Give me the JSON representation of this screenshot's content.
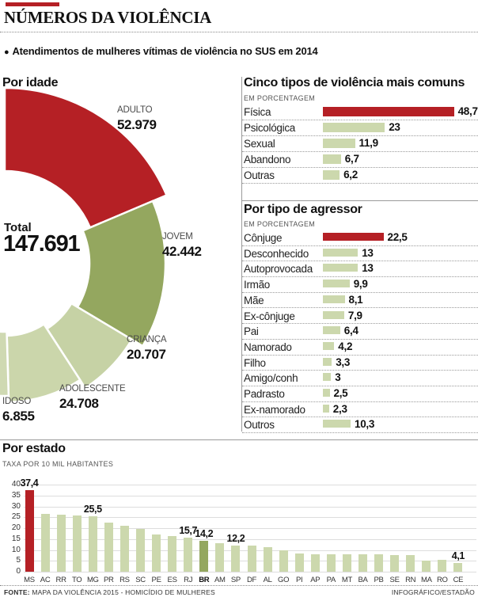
{
  "header": {
    "title": "NÚMEROS DA VIOLÊNCIA",
    "bullet": "●",
    "subtitle": "Atendimentos de mulheres vítimas de violência no SUS em 2014"
  },
  "colors": {
    "red": "#b52025",
    "olive": "#94a75f",
    "light_green": "#ccd8ad",
    "grid": "#dddddd",
    "rule": "#9a9a9a"
  },
  "chart_data": [
    {
      "name": "by_age",
      "type": "donut",
      "title": "Por idade",
      "total_label": "Total",
      "total": 147691,
      "total_display": "147.691",
      "segments": [
        {
          "label": "ADULTO",
          "value": 52979,
          "display": "52.979",
          "color": "#b52025"
        },
        {
          "label": "JOVEM",
          "value": 42442,
          "display": "42.442",
          "color": "#94a75f"
        },
        {
          "label": "CRIANÇA",
          "value": 20707,
          "display": "20.707",
          "color": "#c6d2a5"
        },
        {
          "label": "ADOLESCENTE",
          "value": 24708,
          "display": "24.708",
          "color": "#cbd6ab"
        },
        {
          "label": "IDOSO",
          "value": 6855,
          "display": "6.855",
          "color": "#cfd9b2"
        }
      ]
    },
    {
      "name": "violence_types",
      "type": "bar",
      "title": "Cinco tipos de violência mais comuns",
      "subtitle": "EM PORCENTAGEM",
      "categories": [
        "Física",
        "Psicológica",
        "Sexual",
        "Abandono",
        "Outras"
      ],
      "values": [
        48.7,
        23,
        11.9,
        6.7,
        6.2
      ],
      "displays": [
        "48,7",
        "23",
        "11,9",
        "6,7",
        "6,2"
      ],
      "highlight_index": 0,
      "xlim": [
        0,
        50
      ]
    },
    {
      "name": "aggressor_types",
      "type": "bar",
      "title": "Por tipo de agressor",
      "subtitle": "EM PORCENTAGEM",
      "categories": [
        "Cônjuge",
        "Desconhecido",
        "Autoprovocada",
        "Irmão",
        "Mãe",
        "Ex-cônjuge",
        "Pai",
        "Namorado",
        "Filho",
        "Amigo/conh",
        "Padrasto",
        "Ex-namorado",
        "Outros"
      ],
      "values": [
        22.5,
        13,
        13,
        9.9,
        8.1,
        7.9,
        6.4,
        4.2,
        3.3,
        3,
        2.5,
        2.3,
        10.3
      ],
      "displays": [
        "22,5",
        "13",
        "13",
        "9,9",
        "8,1",
        "7,9",
        "6,4",
        "4,2",
        "3,3",
        "3",
        "2,5",
        "2,3",
        "10,3"
      ],
      "highlight_index": 0,
      "xlim": [
        0,
        50
      ]
    },
    {
      "name": "by_state",
      "type": "column",
      "title": "Por estado",
      "subtitle": "TAXA POR 10 MIL HABITANTES",
      "categories": [
        "MS",
        "AC",
        "RR",
        "TO",
        "MG",
        "PR",
        "RS",
        "SC",
        "PE",
        "ES",
        "RJ",
        "BR",
        "AM",
        "SP",
        "DF",
        "AL",
        "GO",
        "PI",
        "AP",
        "PA",
        "MT",
        "BA",
        "PB",
        "SE",
        "RN",
        "MA",
        "RO",
        "CE"
      ],
      "values": [
        37.4,
        26.5,
        26.2,
        25.9,
        25.5,
        22.5,
        21,
        19.5,
        17,
        16.3,
        15.7,
        14.2,
        13,
        12.2,
        12,
        11.2,
        10,
        8.3,
        8,
        8,
        8.2,
        8,
        7.9,
        7.5,
        7.7,
        5.2,
        5.3,
        4.1
      ],
      "value_labels": {
        "0": "37,4",
        "4": "25,5",
        "10": "15,7",
        "11": "14,2",
        "13": "12,2",
        "27": "4,1"
      },
      "red_index": 0,
      "bold_index": 11,
      "ylim": [
        0,
        40
      ],
      "yticks": [
        40,
        35,
        30,
        25,
        20,
        15,
        10,
        5,
        0
      ],
      "grid": true
    }
  ],
  "footer": {
    "source_label": "FONTE:",
    "source": " MAPA DA VIOLÊNCIA 2015 - HOMICÍDIO DE MULHERES",
    "credit": "INFOGRÁFICO/ESTADÃO"
  }
}
